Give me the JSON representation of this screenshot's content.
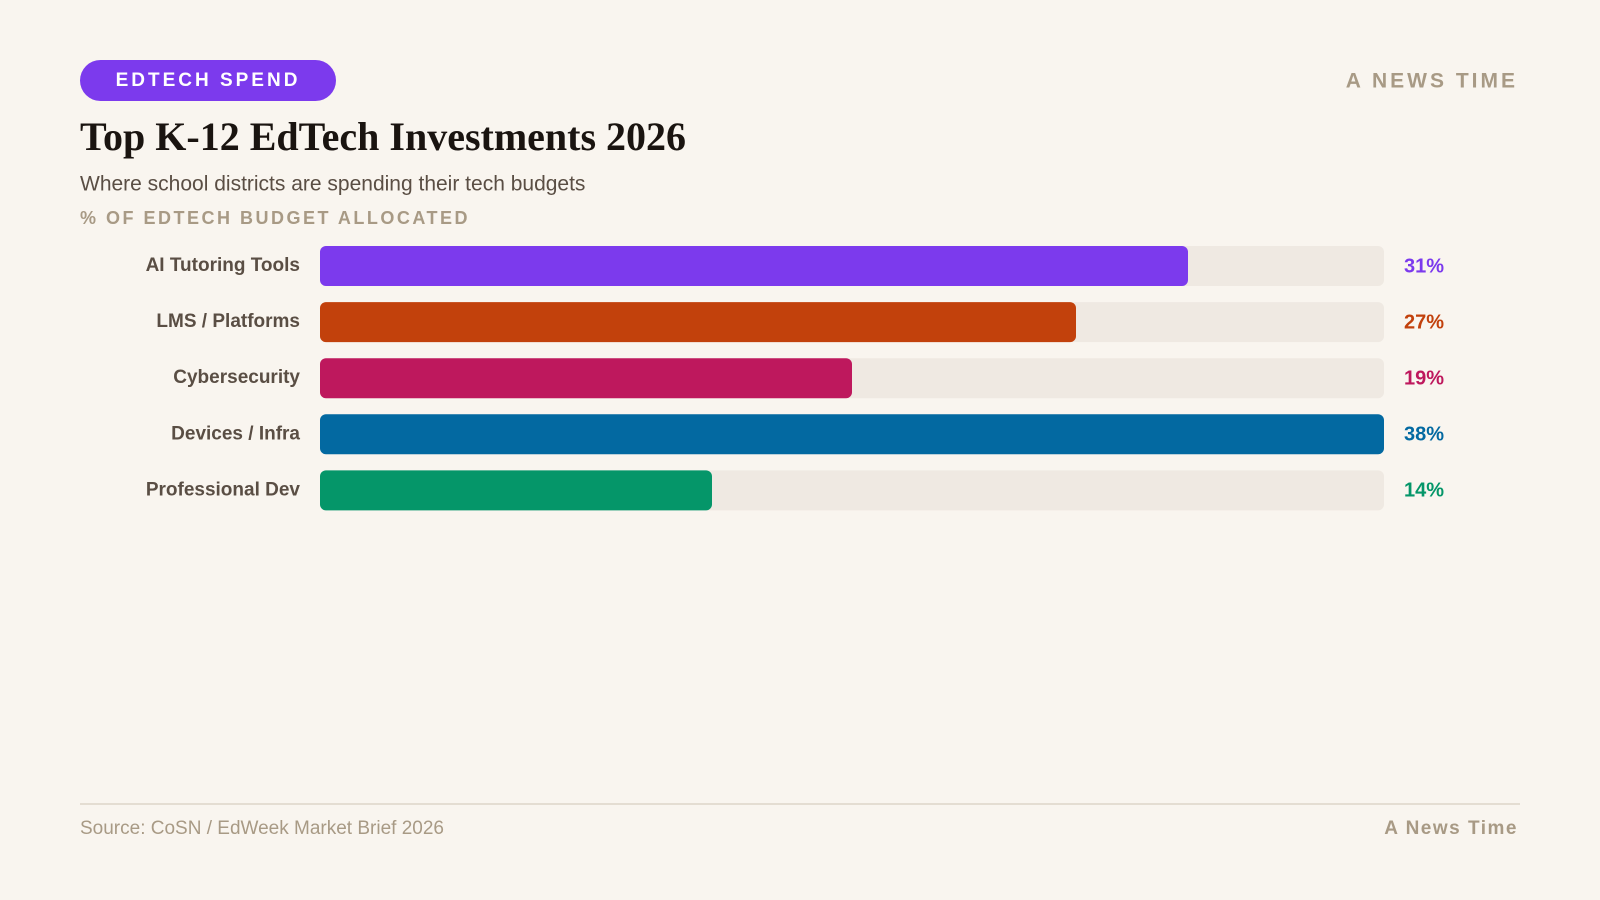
{
  "header": {
    "badge": "EDTECH SPEND",
    "brand": "A NEWS TIME"
  },
  "chart_data": {
    "type": "hbar",
    "title": "Top K-12 EdTech Investments 2026",
    "subtitle": "Where school districts are spending their tech budgets",
    "x_label": "% OF EDTECH BUDGET ALLOCATED",
    "categories": [
      "AI Tutoring Tools",
      "LMS / Platforms",
      "Cybersecurity",
      "Devices / Infra",
      "Professional Dev"
    ],
    "values": [
      31,
      27,
      19,
      38,
      14
    ],
    "value_labels": [
      "31%",
      "27%",
      "19%",
      "38%",
      "14%"
    ],
    "colors": [
      "#7c3aed",
      "#c2410c",
      "#be185d",
      "#0369a1",
      "#059669"
    ],
    "track_color": "#efe9e2"
  },
  "footer": {
    "source": "Source: CoSN / EdWeek Market Brief 2026",
    "brand": "A News Time"
  }
}
